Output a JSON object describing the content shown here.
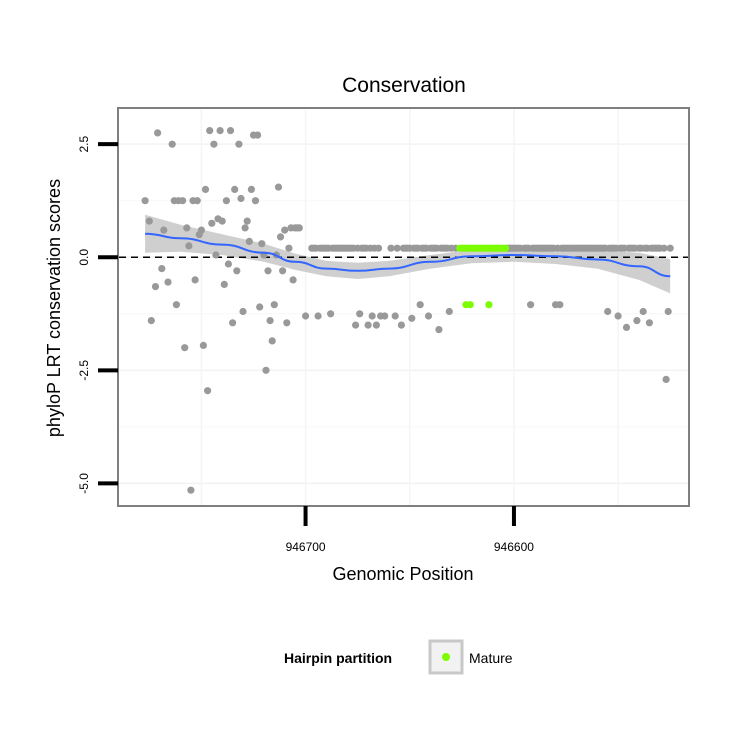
{
  "chart_data": {
    "type": "scatter",
    "title": "Conservation",
    "xlabel": "Genomic Position",
    "ylabel": "phyloP LRT conservation scores",
    "x_reversed": true,
    "xlim": [
      946790,
      946516
    ],
    "ylim": [
      -5.5,
      3.3
    ],
    "x_ticks": [
      946700,
      946600
    ],
    "x_tick_labels": [
      "946700",
      "946600"
    ],
    "y_ticks": [
      -5.0,
      -2.5,
      0.0,
      2.5
    ],
    "y_tick_labels": [
      "-5.0",
      "-2.5",
      "0.0",
      "2.5"
    ],
    "reference_line": {
      "y": 0,
      "style": "dashed"
    },
    "legend": {
      "title": "Hairpin partition",
      "entries": [
        {
          "label": "Mature",
          "color": "#7cfc00"
        }
      ],
      "placement": "bottom"
    },
    "colors": {
      "other": "#999999",
      "mature": "#7cfc00",
      "smooth": "#3366ff",
      "band": "#bfbfbf"
    },
    "series": [
      {
        "name": "Other",
        "points": [
          [
            946777,
            1.25
          ],
          [
            946775,
            0.8
          ],
          [
            946774,
            -1.4
          ],
          [
            946772,
            -0.65
          ],
          [
            946771,
            2.75
          ],
          [
            946769,
            -0.25
          ],
          [
            946768,
            0.6
          ],
          [
            946766,
            -0.55
          ],
          [
            946764,
            2.5
          ],
          [
            946763,
            1.25
          ],
          [
            946762,
            -1.05
          ],
          [
            946761,
            1.25
          ],
          [
            946759,
            1.25
          ],
          [
            946758,
            -2
          ],
          [
            946757,
            0.65
          ],
          [
            946756,
            0.25
          ],
          [
            946755,
            -5.15
          ],
          [
            946754,
            1.25
          ],
          [
            946753,
            -0.5
          ],
          [
            946752,
            1.25
          ],
          [
            946751,
            0.5
          ],
          [
            946750,
            0.6
          ],
          [
            946749,
            -1.95
          ],
          [
            946748,
            1.5
          ],
          [
            946747,
            -2.95
          ],
          [
            946746,
            2.8
          ],
          [
            946745,
            0.75
          ],
          [
            946744,
            2.5
          ],
          [
            946743,
            0.05
          ],
          [
            946742,
            0.85
          ],
          [
            946741,
            2.8
          ],
          [
            946740,
            0.8
          ],
          [
            946739,
            -0.6
          ],
          [
            946738,
            1.25
          ],
          [
            946737,
            -0.15
          ],
          [
            946736,
            2.8
          ],
          [
            946735,
            -1.45
          ],
          [
            946734,
            1.5
          ],
          [
            946733,
            -0.3
          ],
          [
            946732,
            2.5
          ],
          [
            946731,
            1.3
          ],
          [
            946730,
            -1.2
          ],
          [
            946729,
            0.65
          ],
          [
            946728,
            0.8
          ],
          [
            946727,
            0.35
          ],
          [
            946726,
            1.5
          ],
          [
            946725,
            2.7
          ],
          [
            946724,
            1.25
          ],
          [
            946723,
            2.7
          ],
          [
            946722,
            -1.1
          ],
          [
            946721,
            0.3
          ],
          [
            946720,
            0.05
          ],
          [
            946719,
            -2.5
          ],
          [
            946718,
            -0.3
          ],
          [
            946717,
            -1.4
          ],
          [
            946716,
            -1.85
          ],
          [
            946715,
            -1.05
          ],
          [
            946714,
            0.05
          ],
          [
            946713,
            1.55
          ],
          [
            946712,
            0.45
          ],
          [
            946711,
            -0.3
          ],
          [
            946710,
            0.6
          ],
          [
            946709,
            -1.45
          ],
          [
            946708,
            0.2
          ],
          [
            946707,
            0.65
          ],
          [
            946706,
            -0.5
          ],
          [
            946705,
            0.65
          ],
          [
            946704,
            0.65
          ],
          [
            946703,
            0.65
          ],
          [
            946700,
            -1.3
          ],
          [
            946697,
            0.2
          ],
          [
            946696,
            0.2
          ],
          [
            946695,
            0.2
          ],
          [
            946694,
            -1.3
          ],
          [
            946693,
            0.2
          ],
          [
            946692,
            0.2
          ],
          [
            946691,
            0.2
          ],
          [
            946690,
            0.2
          ],
          [
            946689,
            0.2
          ],
          [
            946688,
            -1.25
          ],
          [
            946687,
            0.2
          ],
          [
            946686,
            0.2
          ],
          [
            946685,
            0.2
          ],
          [
            946684,
            0.2
          ],
          [
            946683,
            0.2
          ],
          [
            946682,
            0.2
          ],
          [
            946681,
            0.2
          ],
          [
            946680,
            0.2
          ],
          [
            946679,
            0.2
          ],
          [
            946678,
            0.2
          ],
          [
            946677,
            0.2
          ],
          [
            946676,
            -1.5
          ],
          [
            946675,
            0.2
          ],
          [
            946674,
            -1.25
          ],
          [
            946673,
            0.2
          ],
          [
            946672,
            0.2
          ],
          [
            946671,
            0.2
          ],
          [
            946670,
            -1.5
          ],
          [
            946669,
            0.2
          ],
          [
            946668,
            -1.3
          ],
          [
            946667,
            0.2
          ],
          [
            946666,
            -1.5
          ],
          [
            946665,
            0.2
          ],
          [
            946664,
            -1.3
          ],
          [
            946662,
            -1.3
          ],
          [
            946659,
            0.2
          ],
          [
            946657,
            -1.3
          ],
          [
            946656,
            0.2
          ],
          [
            946654,
            -1.5
          ],
          [
            946653,
            0.2
          ],
          [
            946652,
            0.2
          ],
          [
            946651,
            0.2
          ],
          [
            946650,
            0.2
          ],
          [
            946649,
            -1.35
          ],
          [
            946648,
            0.2
          ],
          [
            946647,
            0.2
          ],
          [
            946646,
            0.2
          ],
          [
            946645,
            -1.05
          ],
          [
            946644,
            0.2
          ],
          [
            946643,
            0.2
          ],
          [
            946642,
            0.2
          ],
          [
            946641,
            -1.3
          ],
          [
            946640,
            0.2
          ],
          [
            946639,
            0.2
          ],
          [
            946638,
            0.2
          ],
          [
            946637,
            0.2
          ],
          [
            946636,
            -1.6
          ],
          [
            946635,
            0.2
          ],
          [
            946634,
            0.2
          ],
          [
            946633,
            0.2
          ],
          [
            946632,
            0.2
          ],
          [
            946631,
            -1.2
          ],
          [
            946630,
            0.2
          ],
          [
            946628,
            0.2
          ],
          [
            946603,
            0.2
          ],
          [
            946602,
            0.2
          ],
          [
            946601,
            0.2
          ],
          [
            946600,
            0.2
          ],
          [
            946599,
            0.2
          ],
          [
            946598,
            0.2
          ],
          [
            946597,
            0.2
          ],
          [
            946595,
            0.2
          ],
          [
            946594,
            0.2
          ],
          [
            946593,
            0.2
          ],
          [
            946592,
            -1.05
          ],
          [
            946591,
            0.2
          ],
          [
            946590,
            0.2
          ],
          [
            946589,
            0.2
          ],
          [
            946588,
            0.2
          ],
          [
            946587,
            0.2
          ],
          [
            946586,
            0.2
          ],
          [
            946585,
            0.2
          ],
          [
            946584,
            0.2
          ],
          [
            946583,
            0.2
          ],
          [
            946582,
            0.2
          ],
          [
            946581,
            0.2
          ],
          [
            946580,
            -1.05
          ],
          [
            946579,
            0.2
          ],
          [
            946578,
            -1.05
          ],
          [
            946577,
            0.2
          ],
          [
            946576,
            0.2
          ],
          [
            946575,
            0.2
          ],
          [
            946574,
            0.2
          ],
          [
            946573,
            0.2
          ],
          [
            946572,
            0.2
          ],
          [
            946571,
            0.2
          ],
          [
            946570,
            0.2
          ],
          [
            946569,
            0.2
          ],
          [
            946568,
            0.2
          ],
          [
            946567,
            0.2
          ],
          [
            946566,
            0.2
          ],
          [
            946565,
            0.2
          ],
          [
            946564,
            0.2
          ],
          [
            946563,
            0.2
          ],
          [
            946562,
            0.2
          ],
          [
            946561,
            0.2
          ],
          [
            946560,
            0.2
          ],
          [
            946559,
            0.2
          ],
          [
            946558,
            0.2
          ],
          [
            946557,
            0.2
          ],
          [
            946556,
            0.2
          ],
          [
            946555,
            -1.2
          ],
          [
            946554,
            0.2
          ],
          [
            946553,
            0.2
          ],
          [
            946552,
            0.2
          ],
          [
            946551,
            0.2
          ],
          [
            946550,
            -1.3
          ],
          [
            946549,
            0.2
          ],
          [
            946548,
            0.2
          ],
          [
            946547,
            0.2
          ],
          [
            946546,
            -1.55
          ],
          [
            946545,
            0.2
          ],
          [
            946544,
            0.2
          ],
          [
            946543,
            0.2
          ],
          [
            946542,
            0.2
          ],
          [
            946541,
            -1.4
          ],
          [
            946540,
            0.2
          ],
          [
            946539,
            0.2
          ],
          [
            946538,
            -1.2
          ],
          [
            946537,
            0.2
          ],
          [
            946536,
            0.2
          ],
          [
            946535,
            -1.45
          ],
          [
            946534,
            0.2
          ],
          [
            946533,
            0.2
          ],
          [
            946532,
            0.2
          ],
          [
            946531,
            0.2
          ],
          [
            946530,
            0.2
          ],
          [
            946528,
            0.2
          ],
          [
            946527,
            -2.7
          ],
          [
            946526,
            -1.2
          ],
          [
            946525,
            0.2
          ]
        ]
      },
      {
        "name": "Mature",
        "points": [
          [
            946626,
            0.2
          ],
          [
            946625,
            0.2
          ],
          [
            946624,
            0.2
          ],
          [
            946623,
            -1.05
          ],
          [
            946623,
            0.2
          ],
          [
            946622,
            0.2
          ],
          [
            946621,
            -1.05
          ],
          [
            946621,
            0.2
          ],
          [
            946620,
            0.2
          ],
          [
            946619,
            0.2
          ],
          [
            946618,
            0.2
          ],
          [
            946617,
            0.2
          ],
          [
            946616,
            0.2
          ],
          [
            946615,
            0.2
          ],
          [
            946614,
            0.2
          ],
          [
            946613,
            0.2
          ],
          [
            946612,
            -1.05
          ],
          [
            946612,
            0.2
          ],
          [
            946611,
            0.2
          ],
          [
            946610,
            0.2
          ],
          [
            946609,
            0.2
          ],
          [
            946608,
            0.2
          ],
          [
            946607,
            0.2
          ],
          [
            946606,
            0.2
          ],
          [
            946605,
            0.2
          ],
          [
            946604,
            0.2
          ]
        ]
      }
    ],
    "smooth": {
      "method": "loess",
      "x": [
        946777,
        946760,
        946740,
        946720,
        946705,
        946690,
        946675,
        946660,
        946640,
        946620,
        946600,
        946580,
        946560,
        946540,
        946525
      ],
      "y": [
        0.52,
        0.42,
        0.28,
        0.1,
        -0.1,
        -0.25,
        -0.3,
        -0.25,
        -0.1,
        0.02,
        0.05,
        0.02,
        -0.05,
        -0.2,
        -0.42
      ],
      "band_lower": [
        0.1,
        0.12,
        0.05,
        -0.1,
        -0.28,
        -0.42,
        -0.48,
        -0.42,
        -0.25,
        -0.13,
        -0.1,
        -0.15,
        -0.25,
        -0.5,
        -0.8
      ],
      "band_upper": [
        0.94,
        0.72,
        0.51,
        0.3,
        0.08,
        -0.08,
        -0.12,
        -0.08,
        0.05,
        0.17,
        0.2,
        0.19,
        0.15,
        0.1,
        -0.04
      ]
    }
  }
}
